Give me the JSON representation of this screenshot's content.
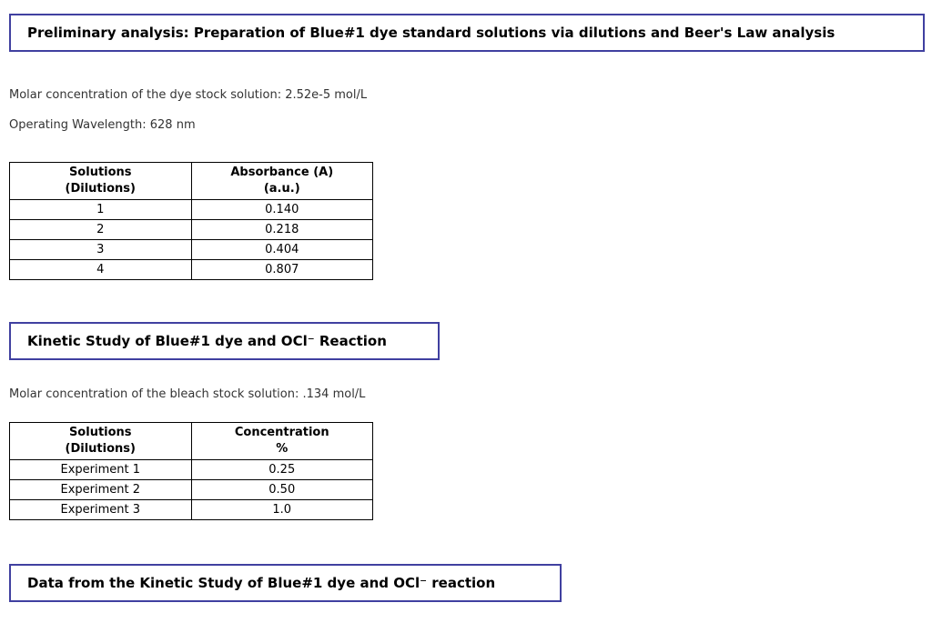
{
  "colors": {
    "box_border": "#4040a0",
    "table_border": "#000000",
    "body_text": "#333333",
    "title_text": "#000000",
    "page_bg": "#ffffff"
  },
  "section1": {
    "title": "Preliminary analysis: Preparation of Blue#1 dye standard solutions via dilutions and Beer's Law analysis",
    "stock_line": "Molar concentration of the dye stock solution: 2.52e-5 mol/L",
    "wavelength_line": "Operating Wavelength: 628 nm",
    "table": {
      "headers": [
        {
          "line1": "Solutions",
          "line2": "(Dilutions)"
        },
        {
          "line1": "Absorbance (A)",
          "line2": "(a.u.)"
        }
      ],
      "rows": [
        [
          "1",
          "0.140"
        ],
        [
          "2",
          "0.218"
        ],
        [
          "3",
          "0.404"
        ],
        [
          "4",
          "0.807"
        ]
      ]
    }
  },
  "section2": {
    "title": "Kinetic Study of Blue#1 dye and OCl⁻ Reaction",
    "stock_line": "Molar concentration of the bleach stock solution: .134 mol/L",
    "table": {
      "headers": [
        {
          "line1": "Solutions",
          "line2": "(Dilutions)"
        },
        {
          "line1": "Concentration",
          "line2": "%"
        }
      ],
      "rows": [
        [
          "Experiment 1",
          "0.25"
        ],
        [
          "Experiment 2",
          "0.50"
        ],
        [
          "Experiment 3",
          "1.0"
        ]
      ]
    }
  },
  "section3": {
    "title": "Data from the Kinetic Study of Blue#1 dye and OCl⁻ reaction"
  }
}
